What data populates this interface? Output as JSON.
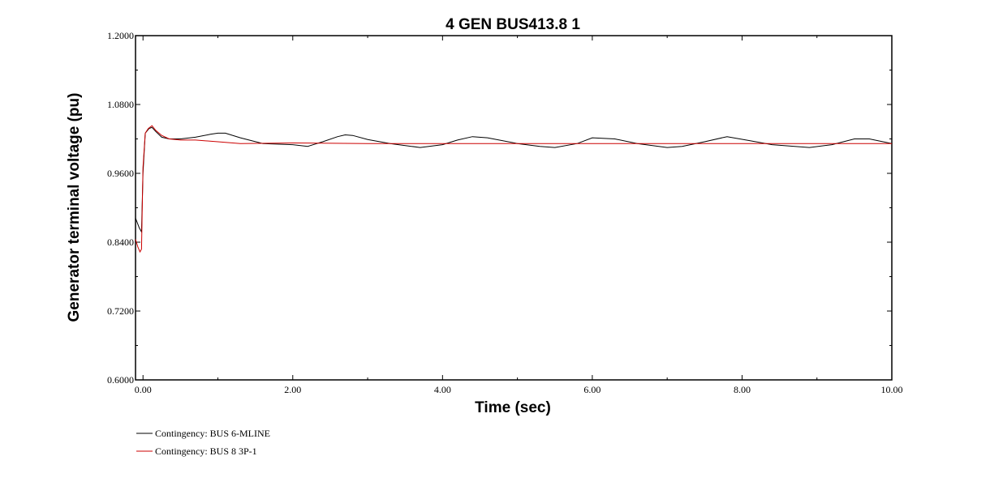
{
  "colors": {
    "series_1": "#000000",
    "series_2": "#cc0000"
  },
  "chart_data": {
    "type": "line",
    "title": "4 GEN BUS413.8  1",
    "xlabel": "Time (sec)",
    "ylabel": "Generator terminal voltage (pu)",
    "xlim": [
      -0.1,
      10.0
    ],
    "ylim": [
      0.6,
      1.2
    ],
    "xticks": [
      0.0,
      2.0,
      4.0,
      6.0,
      8.0,
      10.0
    ],
    "xtick_labels": [
      "0.00",
      "2.00",
      "4.00",
      "6.00",
      "8.00",
      "10.00"
    ],
    "yticks": [
      0.6,
      0.72,
      0.84,
      0.96,
      1.08,
      1.2
    ],
    "ytick_labels": [
      "0.6000",
      "0.7200",
      "0.8400",
      "0.9600",
      "1.0800",
      "1.2000"
    ],
    "grid": false,
    "legend_position": "bottom-left",
    "series": [
      {
        "name": "Contingency: BUS 6-MLINE",
        "color": "#000000",
        "x": [
          -0.1,
          -0.05,
          -0.02,
          0.0,
          0.03,
          0.08,
          0.12,
          0.17,
          0.25,
          0.35,
          0.5,
          0.7,
          0.9,
          1.0,
          1.1,
          1.3,
          1.6,
          2.0,
          2.2,
          2.4,
          2.6,
          2.7,
          2.8,
          3.0,
          3.3,
          3.7,
          4.0,
          4.2,
          4.4,
          4.6,
          5.0,
          5.3,
          5.5,
          5.8,
          6.0,
          6.3,
          6.6,
          7.0,
          7.2,
          7.5,
          7.8,
          8.1,
          8.4,
          8.9,
          9.2,
          9.5,
          9.7,
          10.0
        ],
        "y": [
          0.882,
          0.865,
          0.858,
          0.96,
          1.03,
          1.038,
          1.04,
          1.033,
          1.023,
          1.02,
          1.02,
          1.023,
          1.028,
          1.03,
          1.03,
          1.022,
          1.012,
          1.01,
          1.007,
          1.015,
          1.024,
          1.027,
          1.026,
          1.019,
          1.012,
          1.005,
          1.01,
          1.018,
          1.024,
          1.022,
          1.012,
          1.007,
          1.005,
          1.012,
          1.022,
          1.02,
          1.012,
          1.005,
          1.007,
          1.015,
          1.024,
          1.017,
          1.01,
          1.005,
          1.01,
          1.02,
          1.02,
          1.012
        ]
      },
      {
        "name": "Contingency: BUS 8 3P-1",
        "color": "#cc0000",
        "x": [
          -0.1,
          -0.07,
          -0.04,
          -0.02,
          0.0,
          0.03,
          0.07,
          0.12,
          0.17,
          0.25,
          0.35,
          0.5,
          0.7,
          1.0,
          1.3,
          2.0,
          3.0,
          4.0,
          5.0,
          6.0,
          7.0,
          8.0,
          9.0,
          10.0
        ],
        "y": [
          0.845,
          0.832,
          0.823,
          0.828,
          0.97,
          1.03,
          1.038,
          1.043,
          1.035,
          1.026,
          1.02,
          1.018,
          1.018,
          1.015,
          1.012,
          1.013,
          1.012,
          1.012,
          1.012,
          1.012,
          1.012,
          1.012,
          1.012,
          1.012
        ]
      }
    ]
  }
}
